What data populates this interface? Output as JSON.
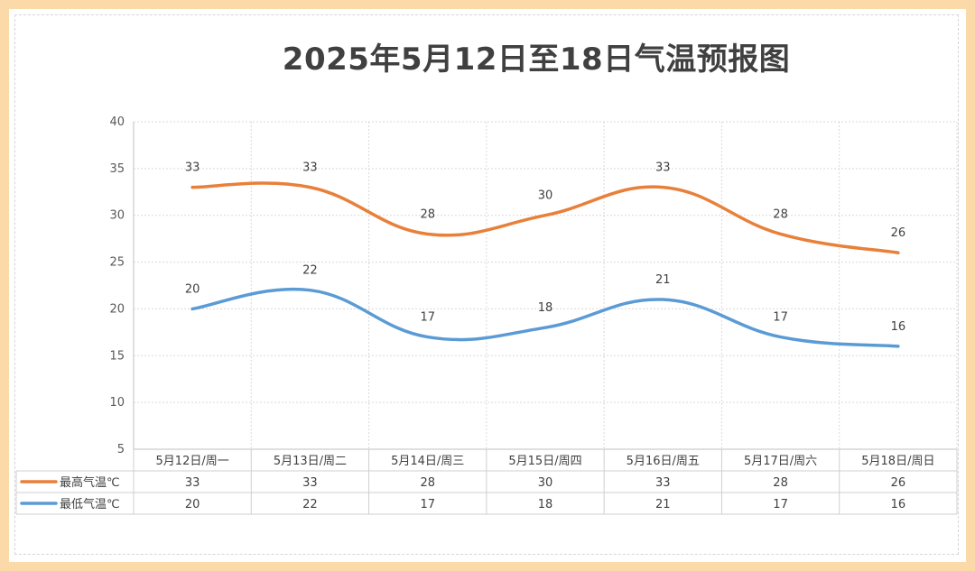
{
  "chart_data": {
    "type": "line",
    "title": "2025年5月12日至18日气温预报图",
    "categories": [
      "5月12日/周一",
      "5月13日/周二",
      "5月14日/周三",
      "5月15日/周四",
      "5月16日/周五",
      "5月17日/周六",
      "5月18日/周日"
    ],
    "series": [
      {
        "name": "最高气温℃",
        "values": [
          33,
          33,
          28,
          30,
          33,
          28,
          26
        ],
        "color": "#e8803a"
      },
      {
        "name": "最低气温℃",
        "values": [
          20,
          22,
          17,
          18,
          21,
          17,
          16
        ],
        "color": "#5b9bd5"
      }
    ],
    "ylim": [
      5,
      40
    ],
    "yticks": [
      5,
      10,
      15,
      20,
      25,
      30,
      35,
      40
    ],
    "grid": true,
    "smooth": true,
    "data_labels": true,
    "legend": "data table below chart"
  },
  "colors": {
    "frame_border": "#fcd9a8",
    "background": "#ffffff"
  }
}
